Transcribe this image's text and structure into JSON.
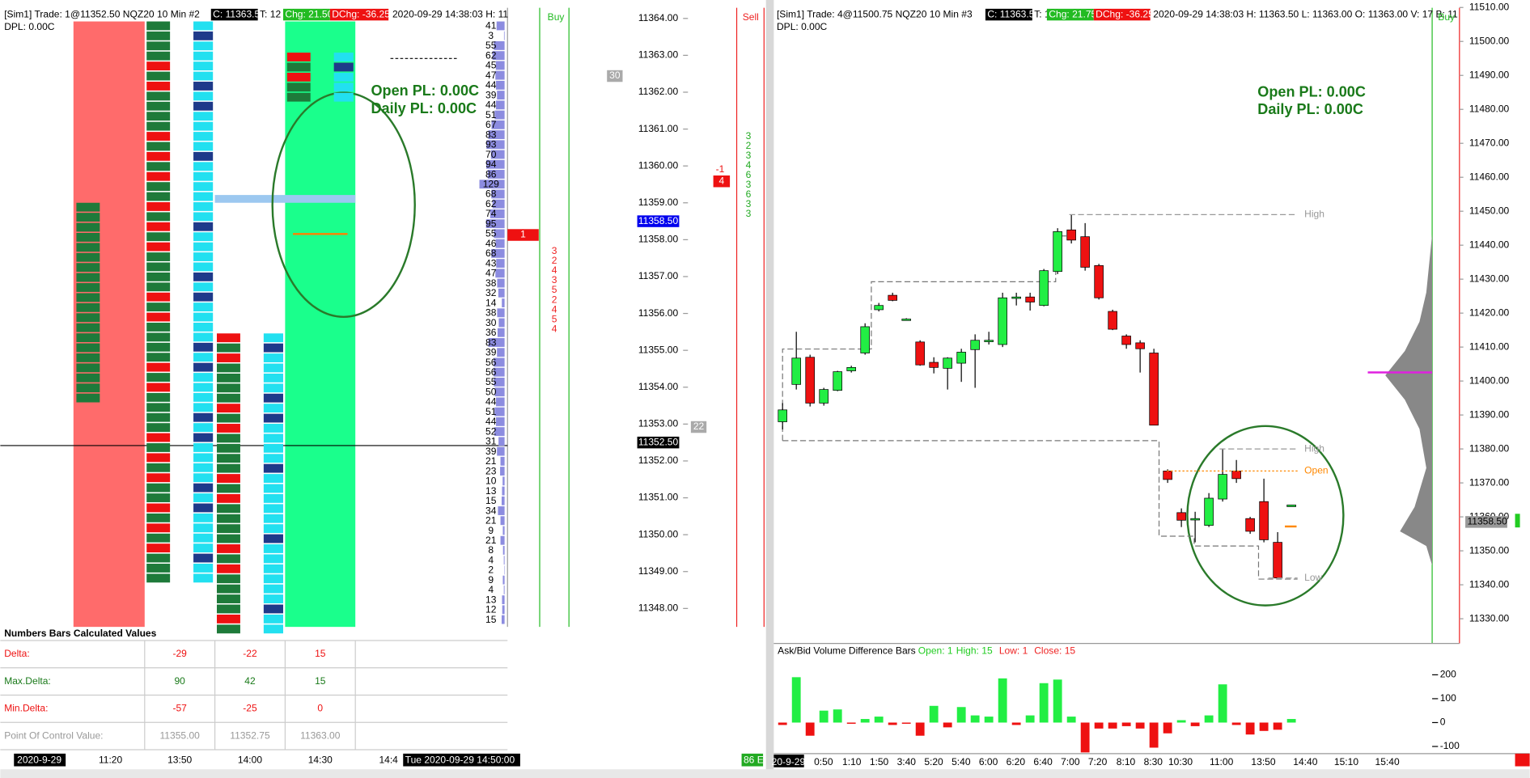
{
  "left": {
    "header": {
      "title": "[Sim1]  Trade: 1@11352.50  NQZ20  10 Min  #2",
      "close": "C: 11363.50",
      "ticks": "T: 12",
      "chg": "Chg: 21.50",
      "dchg": "DChg: -36.25",
      "time": "2020-09-29 14:38:03 H: 11"
    },
    "dpl": "DPL: 0.00C",
    "buy": "Buy",
    "sell": "Sell",
    "open_pl": "Open PL: 0.00C",
    "daily_pl": "Daily PL: 0.00C",
    "ylim": [
      11364.5,
      11347.5
    ],
    "yticks": [
      {
        "value": 11364,
        "label": "11364.00"
      },
      {
        "value": 11363,
        "label": "11363.00"
      },
      {
        "value": 11362,
        "label": "11362.00"
      },
      {
        "value": 11361,
        "label": "11361.00"
      },
      {
        "value": 11360,
        "label": "11360.00"
      },
      {
        "value": 11359,
        "label": "11359.00"
      },
      {
        "value": 11358,
        "label": "11358.00"
      },
      {
        "value": 11357,
        "label": "11357.00"
      },
      {
        "value": 11356,
        "label": "11356.00"
      },
      {
        "value": 11355,
        "label": "11355.00"
      },
      {
        "value": 11354,
        "label": "11354.00"
      },
      {
        "value": 11353,
        "label": "11353.00"
      },
      {
        "value": 11352,
        "label": "11352.00"
      },
      {
        "value": 11351,
        "label": "11351.00"
      },
      {
        "value": 11350,
        "label": "11350.00"
      },
      {
        "value": 11349,
        "label": "11349.00"
      },
      {
        "value": 11348,
        "label": "11348.00"
      }
    ],
    "price_tags": [
      {
        "value": 11358.5,
        "label": "11358.50",
        "color": "#0000ee"
      },
      {
        "value": 11352.5,
        "label": "11352.50",
        "color": "#000000"
      }
    ],
    "volume": [
      41,
      3,
      55,
      62,
      45,
      47,
      44,
      39,
      44,
      51,
      67,
      83,
      93,
      70,
      94,
      86,
      129,
      68,
      62,
      74,
      95,
      55,
      46,
      68,
      43,
      47,
      38,
      32,
      14,
      38,
      30,
      36,
      83,
      39,
      56,
      56,
      55,
      50,
      44,
      51,
      44,
      52,
      31,
      39,
      21,
      23,
      10,
      13,
      15,
      34,
      21,
      9,
      21,
      8,
      4,
      2,
      9,
      4,
      13,
      12,
      15
    ],
    "order_tags": [
      "1",
      "-1",
      "4",
      "30",
      "22"
    ],
    "sell_counts": "3\n2\n4\n3\n5\n2\n4\n5\n4",
    "buy_counts": "3\n2\n3\n4\n6\n3\n6\n3\n3",
    "table": {
      "title": "Numbers Bars Calculated Values",
      "rows": [
        [
          "Delta:",
          "-29",
          "-22",
          "15"
        ],
        [
          "Max.Delta:",
          "90",
          "42",
          "15"
        ],
        [
          "Min.Delta:",
          "-57",
          "-25",
          "0"
        ],
        [
          "Point Of Control Value:",
          "11355.00",
          "11352.75",
          "11363.00"
        ]
      ]
    },
    "time_axis": [
      "2020-9-29",
      "11:20",
      "13:50",
      "14:00",
      "14:30",
      "14:4"
    ],
    "cursor_time": "Tue 2020-09-29 14:50:00",
    "status": "86 E"
  },
  "chart_data": {
    "type": "candlestick",
    "header": {
      "title": "[Sim1]  Trade: 4@11500.75  NQZ20  10 Min  #3",
      "close": "C: 11363.50",
      "ticks": "T: 10",
      "chg": "Chg: 21.75",
      "dchg": "DChg: -36.25",
      "time": "2020-09-29 14:38:03 H: 11363.50 L: 11363.00 O: 11363.00 V: 17 B: 11"
    },
    "dpl": "DPL: 0.00C",
    "buy": "Buy",
    "open_pl": "Open PL: 0.00C",
    "daily_pl": "Daily PL: 0.00C",
    "ylim": [
      11512.2,
      11327.6
    ],
    "yticks": [
      {
        "value": 11510,
        "label": "11510.00"
      },
      {
        "value": 11500,
        "label": "11500.00"
      },
      {
        "value": 11490,
        "label": "11490.00"
      },
      {
        "value": 11480,
        "label": "11480.00"
      },
      {
        "value": 11470,
        "label": "11470.00"
      },
      {
        "value": 11460,
        "label": "11460.00"
      },
      {
        "value": 11450,
        "label": "11450.00"
      },
      {
        "value": 11440,
        "label": "11440.00"
      },
      {
        "value": 11430,
        "label": "11430.00"
      },
      {
        "value": 11420,
        "label": "11420.00"
      },
      {
        "value": 11410,
        "label": "11410.00"
      },
      {
        "value": 11400,
        "label": "11400.00"
      },
      {
        "value": 11390,
        "label": "11390.00"
      },
      {
        "value": 11380,
        "label": "11380.00"
      },
      {
        "value": 11370,
        "label": "11370.00"
      },
      {
        "value": 11360,
        "label": "11360.00"
      },
      {
        "value": 11350,
        "label": "11350.00"
      },
      {
        "value": 11340,
        "label": "11340.00"
      },
      {
        "value": 11330,
        "label": "11330.00"
      }
    ],
    "price_tag": {
      "value": 11358.5,
      "label": "11358.50"
    },
    "up_color": "#22ee44",
    "down_color": "#ee1111",
    "open": [
      11388,
      11399,
      11407,
      11393.5,
      11397.25,
      11403,
      11408.25,
      11421,
      11425.25,
      11418.25,
      11411.5,
      11405.5,
      11403.75,
      11405.25,
      11409.25,
      11412,
      11410.75,
      11424.75,
      11424.75,
      11422.25,
      11432.25,
      11444.5,
      11442.5,
      11434,
      11420.5,
      11413.25,
      11411.25,
      11408.25,
      11373.5,
      11361.25,
      11359.5,
      11357.5,
      11365.25,
      11373.5,
      11359.5,
      11364.5,
      11352.5,
      11363
    ],
    "high": [
      11393.5,
      11414.5,
      11407.75,
      11398,
      11403,
      11404.5,
      11417,
      11423,
      11426,
      11418.5,
      11412,
      11407,
      11407,
      11409.5,
      11413.75,
      11414.5,
      11426,
      11426,
      11426,
      11433,
      11445,
      11449,
      11446.5,
      11434.5,
      11421,
      11413.75,
      11412,
      11409.5,
      11374,
      11362.5,
      11361.5,
      11367,
      11380,
      11376.75,
      11360,
      11371.25,
      11355.5,
      11363.5
    ],
    "low": [
      11385.75,
      11397.5,
      11392.5,
      11392.75,
      11397,
      11402.5,
      11407.75,
      11420.5,
      11423.5,
      11418,
      11404.5,
      11402.25,
      11397.5,
      11399.75,
      11398,
      11410.75,
      11410,
      11422.25,
      11420.75,
      11422,
      11431.5,
      11440.5,
      11432.5,
      11424,
      11415,
      11409.5,
      11402.5,
      11387,
      11370,
      11357,
      11352.5,
      11357,
      11364.5,
      11370,
      11355,
      11352.5,
      11342,
      11363
    ],
    "close": [
      11391.5,
      11406.75,
      11393.5,
      11397.5,
      11402.75,
      11404,
      11416,
      11422.25,
      11423.75,
      11418.25,
      11404.75,
      11404,
      11406.75,
      11408.5,
      11412,
      11412,
      11424.5,
      11424.75,
      11423.25,
      11432.5,
      11444,
      11441.5,
      11433.5,
      11424.5,
      11415.25,
      11410.75,
      11409.5,
      11387,
      11371,
      11359,
      11359.5,
      11365.5,
      11372.5,
      11371.25,
      11355.75,
      11353.25,
      11342,
      11363.5
    ],
    "levels": [
      {
        "label": "High",
        "value": 11449
      },
      {
        "label": "High",
        "value": 11380
      },
      {
        "label": "Open",
        "value": 11373.5
      },
      {
        "label": "Low",
        "value": 11342
      }
    ],
    "x_labels": [
      "20-9-29",
      "0:50",
      "1:10",
      "1:50",
      "3:40",
      "5:20",
      "5:40",
      "6:00",
      "6:20",
      "6:40",
      "7:00",
      "7:20",
      "8:10",
      "8:30",
      "10:30",
      "11:00",
      "13:50",
      "14:40",
      "15:10",
      "15:40"
    ],
    "indicator": {
      "title": "Ask/Bid Volume Difference Bars",
      "open": "Open: 1",
      "high": "High: 15",
      "low": "Low: 1",
      "close": "Close: 15",
      "ylim": [
        -130,
        210
      ],
      "yticks": [
        200,
        100,
        0,
        -100
      ],
      "values": [
        -10,
        190,
        -55,
        50,
        55,
        -5,
        15,
        25,
        -10,
        -5,
        -55,
        70,
        -20,
        65,
        30,
        25,
        185,
        -10,
        30,
        165,
        180,
        25,
        -125,
        -25,
        -25,
        -15,
        -25,
        -105,
        -45,
        10,
        -15,
        30,
        160,
        -10,
        -50,
        -35,
        -30,
        15
      ]
    }
  }
}
